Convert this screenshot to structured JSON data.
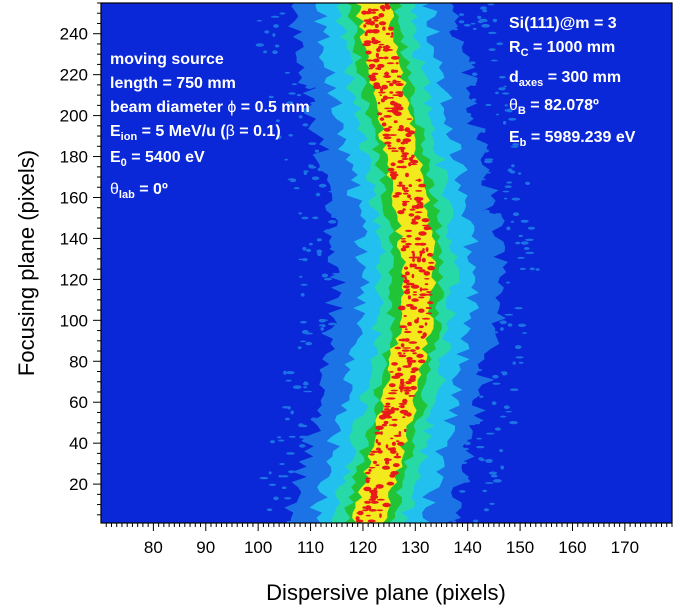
{
  "chart_data": {
    "type": "heatmap",
    "xlabel": "Dispersive plane (pixels)",
    "ylabel": "Focusing plane (pixels)",
    "xlim": [
      70,
      179
    ],
    "ylim": [
      1,
      255
    ],
    "x_ticks": [
      80,
      90,
      100,
      110,
      120,
      130,
      140,
      150,
      160,
      170
    ],
    "y_ticks": [
      20,
      40,
      60,
      80,
      100,
      120,
      140,
      160,
      180,
      200,
      220,
      240
    ],
    "band_center": [
      {
        "y": 1,
        "x": 121
      },
      {
        "y": 30,
        "x": 124
      },
      {
        "y": 60,
        "x": 127
      },
      {
        "y": 100,
        "x": 130
      },
      {
        "y": 130,
        "x": 130.5
      },
      {
        "y": 160,
        "x": 129
      },
      {
        "y": 200,
        "x": 126
      },
      {
        "y": 230,
        "x": 123.5
      },
      {
        "y": 255,
        "x": 122
      }
    ],
    "colorscale": [
      "#0a27d8",
      "#1c73e6",
      "#22c0ee",
      "#27d9a6",
      "#22c437",
      "#f2ea1c",
      "#e81a1a"
    ],
    "background_color": "#0a27d8",
    "annotations_left": {
      "line1": "moving source",
      "line2": "length = 750 mm",
      "line3_pre": "beam diameter ",
      "line3_sym": "ϕ",
      "line3_post": " = 0.5 mm",
      "line4_main": "E",
      "line4_sub": "ion",
      "line4_rest": " = 5 MeV/u (",
      "line4_beta": "β",
      "line4_end": " = 0.1)",
      "line5_main": "E",
      "line5_sub": "0",
      "line5_rest": " = 5400 eV",
      "line6_main": "θ",
      "line6_sub": "lab",
      "line6_rest": " = 0º"
    },
    "annotations_right": {
      "line1": "Si(111)@m = 3",
      "line2_main": "R",
      "line2_sub": "C",
      "line2_rest": " = 1000 mm",
      "line3_main": "d",
      "line3_sub": "axes",
      "line3_rest": " = 300 mm",
      "line4_main": "θ",
      "line4_sub": "B",
      "line4_rest": " = 82.078º",
      "line5_main": "E",
      "line5_sub": "b",
      "line5_rest": " = 5989.239 eV"
    }
  }
}
